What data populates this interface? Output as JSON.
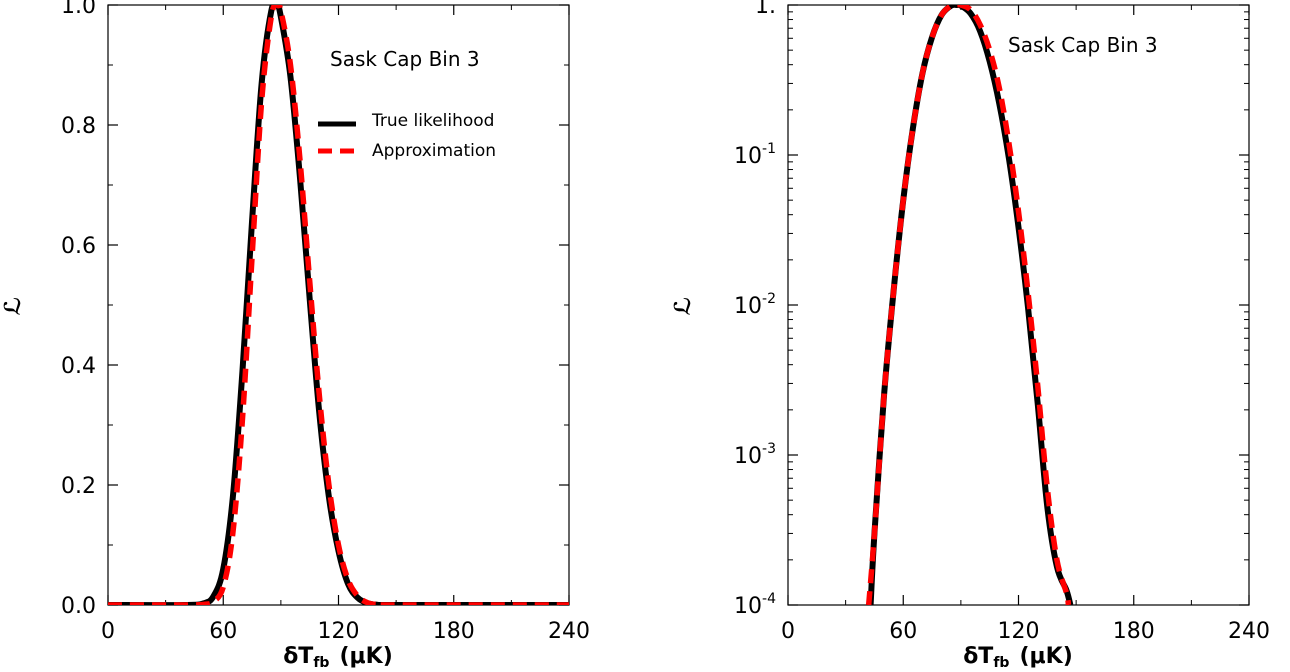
{
  "chart_data": [
    {
      "type": "line",
      "yscale": "linear",
      "xlabel": {
        "main": "δT",
        "sub": "fb",
        "unit": "(μK)"
      },
      "ylabel": "ℒ",
      "xlim": [
        0,
        240
      ],
      "ylim": [
        0,
        1.0
      ],
      "xticks": [
        0,
        60,
        120,
        180,
        240
      ],
      "xtick_labels": [
        "0",
        "60",
        "120",
        "180",
        "240"
      ],
      "yticks": [
        0,
        0.2,
        0.4,
        0.6,
        0.8,
        1.0
      ],
      "ytick_labels": [
        "0.0",
        "0.2",
        "0.4",
        "0.6",
        "0.8",
        "1.0"
      ],
      "annotation": "Sask Cap Bin 3",
      "legend": {
        "placement": "upper-right",
        "entries": [
          "True likelihood",
          "Approximation"
        ]
      },
      "series": [
        {
          "name": "True likelihood",
          "color": "#000000",
          "style": "solid",
          "x": [
            0,
            40,
            50,
            55,
            60,
            65,
            70,
            75,
            80,
            85,
            88,
            90,
            95,
            100,
            105,
            110,
            115,
            120,
            125,
            130,
            135,
            140,
            150,
            240
          ],
          "y": [
            0,
            0.0,
            0.003,
            0.015,
            0.06,
            0.18,
            0.39,
            0.64,
            0.87,
            0.99,
            1.0,
            0.98,
            0.88,
            0.71,
            0.51,
            0.32,
            0.18,
            0.09,
            0.035,
            0.012,
            0.003,
            0.0005,
            0,
            0
          ]
        },
        {
          "name": "Approximation",
          "color": "#ff0000",
          "style": "dashed",
          "x": [
            0,
            40,
            50,
            55,
            60,
            65,
            70,
            75,
            80,
            85,
            88,
            90,
            95,
            100,
            105,
            110,
            115,
            120,
            125,
            130,
            135,
            140,
            150,
            240
          ],
          "y": [
            0,
            0.0,
            0.001,
            0.006,
            0.03,
            0.12,
            0.31,
            0.58,
            0.84,
            0.98,
            1.0,
            0.99,
            0.9,
            0.74,
            0.54,
            0.35,
            0.2,
            0.1,
            0.042,
            0.015,
            0.004,
            0.0008,
            0,
            0
          ]
        }
      ]
    },
    {
      "type": "line",
      "yscale": "log",
      "xlabel": {
        "main": "δT",
        "sub": "fb",
        "unit": "(μK)"
      },
      "ylabel": "ℒ",
      "xlim": [
        0,
        240
      ],
      "ylim": [
        0.0001,
        1.0
      ],
      "xticks": [
        0,
        60,
        120,
        180,
        240
      ],
      "xtick_labels": [
        "0",
        "60",
        "120",
        "180",
        "240"
      ],
      "yticks": [
        {
          "value": 0.0001,
          "base": "10",
          "exp": "-4"
        },
        {
          "value": 0.001,
          "base": "10",
          "exp": "-3"
        },
        {
          "value": 0.01,
          "base": "10",
          "exp": "-2"
        },
        {
          "value": 0.1,
          "base": "10",
          "exp": "-1"
        },
        {
          "value": 1,
          "base": "1.",
          "exp": ""
        }
      ],
      "annotation": "Sask Cap Bin 3",
      "series": [
        {
          "name": "True likelihood",
          "color": "#000000",
          "style": "solid",
          "x": [
            43,
            45,
            50,
            55,
            60,
            65,
            70,
            75,
            80,
            85,
            88,
            90,
            95,
            100,
            105,
            110,
            115,
            120,
            125,
            130,
            135,
            140,
            145,
            147
          ],
          "y": [
            0.0001,
            0.0003,
            0.0025,
            0.0125,
            0.05,
            0.15,
            0.35,
            0.61,
            0.86,
            0.99,
            1.0,
            0.99,
            0.88,
            0.67,
            0.42,
            0.22,
            0.095,
            0.033,
            0.0095,
            0.0022,
            0.00045,
            0.00018,
            0.000125,
            0.0001
          ]
        },
        {
          "name": "Approximation",
          "color": "#ff0000",
          "style": "dashed",
          "x": [
            42,
            45,
            50,
            55,
            60,
            65,
            70,
            75,
            80,
            85,
            88,
            90,
            95,
            100,
            105,
            110,
            115,
            120,
            125,
            130,
            135,
            140,
            145,
            146
          ],
          "y": [
            0.0001,
            0.0003,
            0.0025,
            0.0125,
            0.05,
            0.15,
            0.35,
            0.61,
            0.86,
            0.99,
            1.0,
            1.0,
            0.93,
            0.74,
            0.5,
            0.28,
            0.12,
            0.042,
            0.012,
            0.0029,
            0.0006,
            0.0002,
            0.00012,
            0.0001
          ]
        }
      ]
    }
  ]
}
